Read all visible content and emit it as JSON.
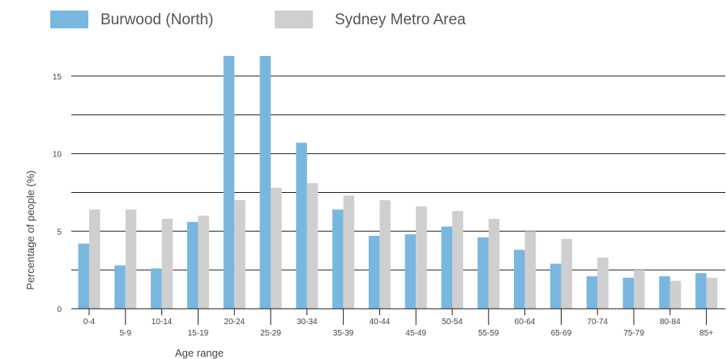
{
  "chart_data": {
    "type": "bar",
    "categories": [
      "0-4",
      "5-9",
      "10-14",
      "15-19",
      "20-24",
      "25-29",
      "30-34",
      "35-39",
      "40-44",
      "45-49",
      "50-54",
      "55-59",
      "60-64",
      "65-69",
      "70-74",
      "75-79",
      "80-84",
      "85+"
    ],
    "series": [
      {
        "name": "Burwood (North)",
        "color": "#79b7df",
        "values": [
          4.2,
          2.8,
          2.6,
          5.6,
          16.3,
          16.3,
          10.7,
          6.4,
          4.7,
          4.8,
          5.3,
          4.6,
          3.8,
          2.9,
          2.1,
          2.0,
          2.1,
          2.3
        ]
      },
      {
        "name": "Sydney Metro Area",
        "color": "#cfcfcf",
        "values": [
          6.4,
          6.4,
          5.8,
          6.0,
          7.0,
          7.8,
          8.1,
          7.3,
          7.0,
          6.6,
          6.3,
          5.8,
          5.0,
          4.5,
          3.3,
          2.5,
          1.8,
          2.0
        ]
      }
    ],
    "xlabel": "Age range",
    "ylabel": "Percentage of people (%)",
    "ylim": [
      0,
      16.3
    ],
    "yticks": [
      0,
      5,
      10,
      15
    ],
    "gridlines": [
      2.5,
      5,
      7.5,
      10,
      12.5,
      15
    ],
    "grid": true,
    "legend": "top-left"
  }
}
